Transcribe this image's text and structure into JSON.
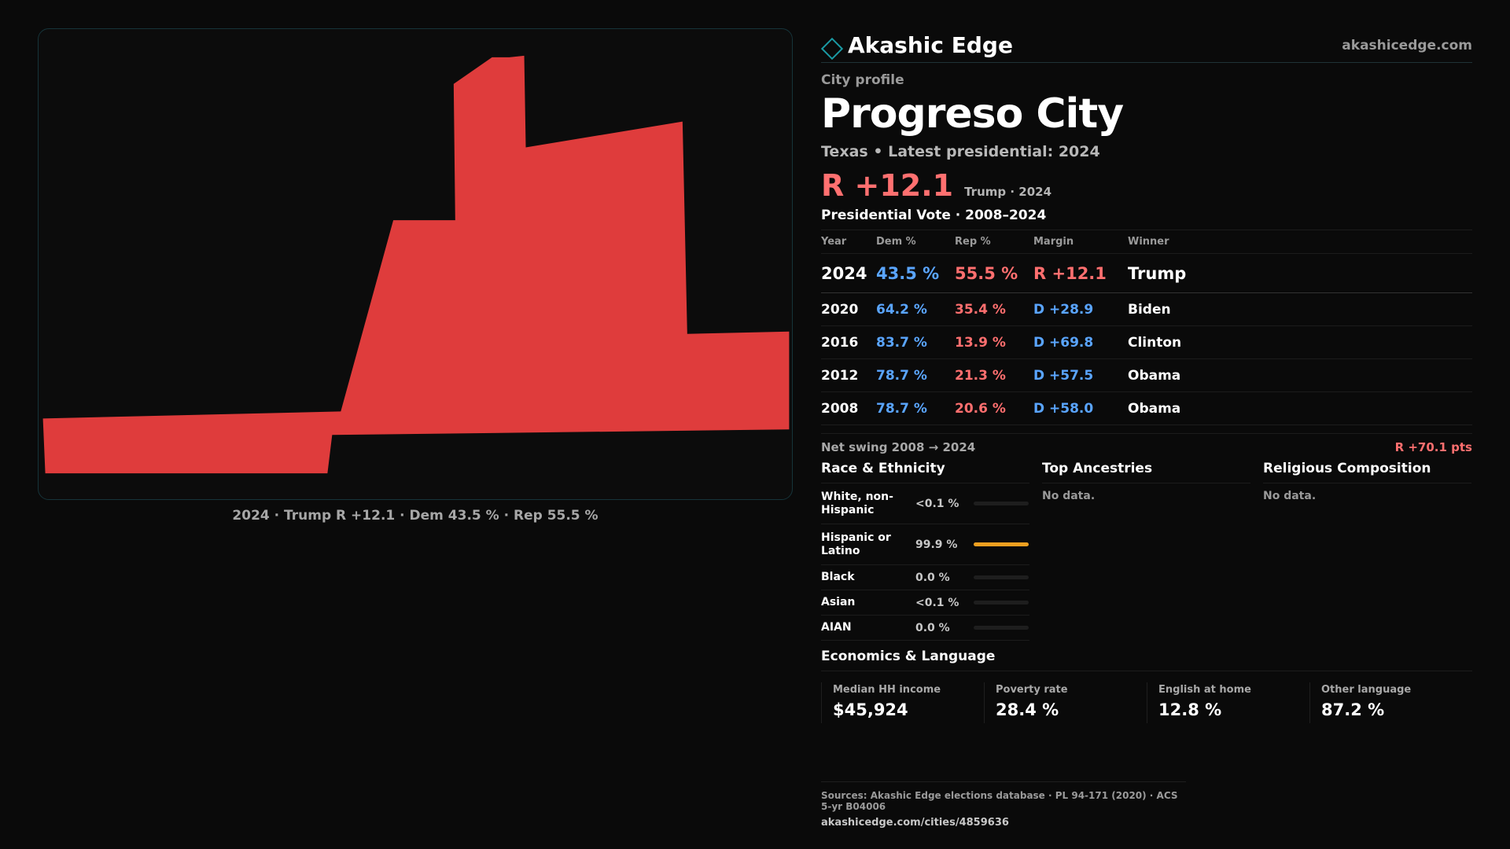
{
  "map": {
    "fill_color": "#df3c3c",
    "caption": "2024 · Trump R +12.1 · Dem 43.5 % · Rep 55.5 %"
  },
  "brand": {
    "name": "Akashic Edge",
    "url": "akashicedge.com",
    "logo_icon": "diamond-icon",
    "accent_color": "#1a9aa4"
  },
  "profile": {
    "eyebrow": "City profile",
    "city": "Progreso City",
    "subtitle": "Texas • Latest presidential: 2024",
    "headline_margin": "R +12.1",
    "headline_note": "Trump · 2024"
  },
  "votes": {
    "title": "Presidential Vote · 2008–2024",
    "headers": [
      "Year",
      "Dem %",
      "Rep %",
      "Margin",
      "Winner"
    ],
    "rows": [
      {
        "year": "2024",
        "dem": "43.5 %",
        "rep": "55.5 %",
        "margin": "R +12.1",
        "winner": "Trump",
        "margin_party": "R"
      },
      {
        "year": "2020",
        "dem": "64.2 %",
        "rep": "35.4 %",
        "margin": "D +28.9",
        "winner": "Biden",
        "margin_party": "D"
      },
      {
        "year": "2016",
        "dem": "83.7 %",
        "rep": "13.9 %",
        "margin": "D +69.8",
        "winner": "Clinton",
        "margin_party": "D"
      },
      {
        "year": "2012",
        "dem": "78.7 %",
        "rep": "21.3 %",
        "margin": "D +57.5",
        "winner": "Obama",
        "margin_party": "D"
      },
      {
        "year": "2008",
        "dem": "78.7 %",
        "rep": "20.6 %",
        "margin": "D +58.0",
        "winner": "Obama",
        "margin_party": "D"
      }
    ],
    "swing_label": "Net swing 2008 → 2024",
    "swing_value": "R +70.1 pts"
  },
  "race": {
    "title": "Race & Ethnicity",
    "rows": [
      {
        "name": "White, non-Hispanic",
        "pct": "<0.1 %",
        "share": 0.0
      },
      {
        "name": "Hispanic or Latino",
        "pct": "99.9 %",
        "share": 0.999
      },
      {
        "name": "Black",
        "pct": "0.0 %",
        "share": 0.0
      },
      {
        "name": "Asian",
        "pct": "<0.1 %",
        "share": 0.0
      },
      {
        "name": "AIAN",
        "pct": "0.0 %",
        "share": 0.0
      }
    ]
  },
  "ancestries": {
    "title": "Top Ancestries",
    "empty": "No data."
  },
  "religion": {
    "title": "Religious Composition",
    "empty": "No data."
  },
  "economics": {
    "title": "Economics & Language",
    "stats": [
      {
        "label": "Median HH income",
        "value": "$45,924"
      },
      {
        "label": "Poverty rate",
        "value": "28.4 %"
      },
      {
        "label": "English at home",
        "value": "12.8 %"
      },
      {
        "label": "Other language",
        "value": "87.2 %"
      }
    ]
  },
  "footer": {
    "sources": "Sources: Akashic Edge elections database · PL 94-171 (2020) · ACS 5-yr B04006",
    "url": "akashicedge.com/cities/4859636"
  }
}
